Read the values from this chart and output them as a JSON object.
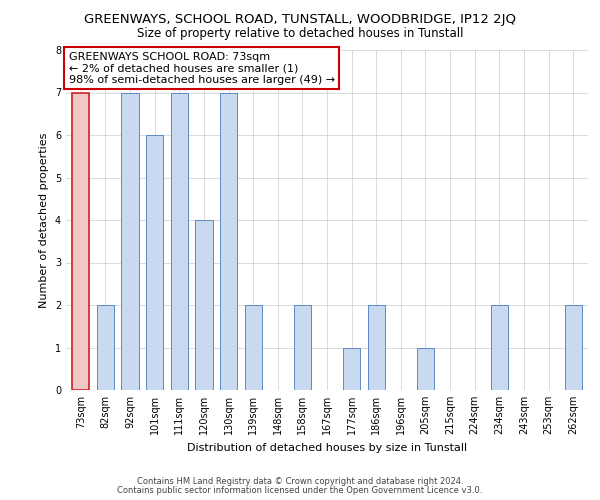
{
  "title": "GREENWAYS, SCHOOL ROAD, TUNSTALL, WOODBRIDGE, IP12 2JQ",
  "subtitle": "Size of property relative to detached houses in Tunstall",
  "xlabel": "Distribution of detached houses by size in Tunstall",
  "ylabel": "Number of detached properties",
  "categories": [
    "73sqm",
    "82sqm",
    "92sqm",
    "101sqm",
    "111sqm",
    "120sqm",
    "130sqm",
    "139sqm",
    "148sqm",
    "158sqm",
    "167sqm",
    "177sqm",
    "186sqm",
    "196sqm",
    "205sqm",
    "215sqm",
    "224sqm",
    "234sqm",
    "243sqm",
    "253sqm",
    "262sqm"
  ],
  "values": [
    7,
    2,
    7,
    6,
    7,
    4,
    7,
    2,
    0,
    2,
    0,
    1,
    2,
    0,
    1,
    0,
    0,
    2,
    0,
    0,
    2
  ],
  "highlight_index": 0,
  "bar_color_normal": "#c8d9f0",
  "bar_color_highlight": "#f0c8c8",
  "bar_edge_color_normal": "#5a8ac6",
  "bar_edge_color_highlight": "#cc2222",
  "grid_color": "#cccccc",
  "background_color": "#ffffff",
  "annotation_box_color": "#ffffff",
  "annotation_box_edge": "#cc0000",
  "annotation_line1": "GREENWAYS SCHOOL ROAD: 73sqm",
  "annotation_line2": "← 2% of detached houses are smaller (1)",
  "annotation_line3": "98% of semi-detached houses are larger (49) →",
  "footer_line1": "Contains HM Land Registry data © Crown copyright and database right 2024.",
  "footer_line2": "Contains public sector information licensed under the Open Government Licence v3.0.",
  "ylim": [
    0,
    8
  ],
  "yticks": [
    0,
    1,
    2,
    3,
    4,
    5,
    6,
    7,
    8
  ],
  "title_fontsize": 9.5,
  "subtitle_fontsize": 8.5,
  "ylabel_fontsize": 8,
  "xlabel_fontsize": 8,
  "tick_fontsize": 7,
  "annotation_fontsize": 8,
  "footer_fontsize": 6
}
